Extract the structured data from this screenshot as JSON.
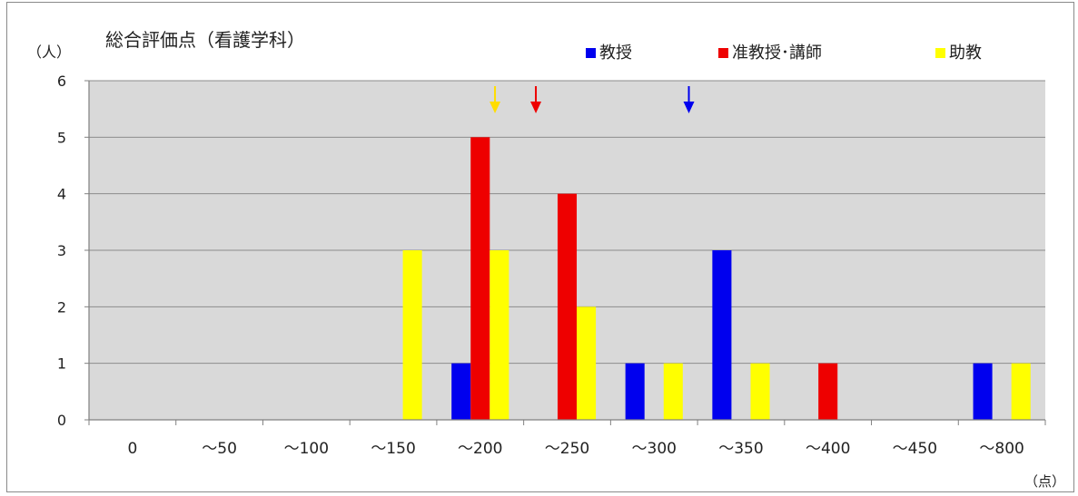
{
  "chart_data": {
    "type": "bar",
    "title": "総合評価点（看護学科）",
    "ylabel": "（人）",
    "xlabel": "（点）",
    "ylim": [
      0,
      6
    ],
    "yticks": [
      0,
      1,
      2,
      3,
      4,
      5,
      6
    ],
    "grid": true,
    "legend_position": "top-right",
    "categories": [
      "0",
      "〜50",
      "〜100",
      "〜150",
      "〜200",
      "〜250",
      "〜300",
      "〜350",
      "〜400",
      "〜450",
      "〜800"
    ],
    "series": [
      {
        "name": "教授",
        "color": "#0000ee",
        "values": [
          0,
          0,
          0,
          0,
          1,
          0,
          1,
          3,
          0,
          0,
          1
        ]
      },
      {
        "name": "准教授･講師",
        "color": "#ee0000",
        "values": [
          0,
          0,
          0,
          0,
          5,
          4,
          0,
          0,
          1,
          0,
          0
        ]
      },
      {
        "name": "助教",
        "color": "#ffff00",
        "values": [
          0,
          0,
          0,
          3,
          3,
          2,
          1,
          1,
          0,
          0,
          1
        ]
      }
    ],
    "plot_background": "#d9d9d9",
    "gridline_color": "#8c8c8c",
    "arrows": [
      {
        "series": "助教",
        "color": "#ffdd00",
        "x": 4.67
      },
      {
        "series": "准教授･講師",
        "color": "#ee0000",
        "x": 5.14
      },
      {
        "series": "教授",
        "color": "#0000ee",
        "x": 6.9
      }
    ]
  }
}
